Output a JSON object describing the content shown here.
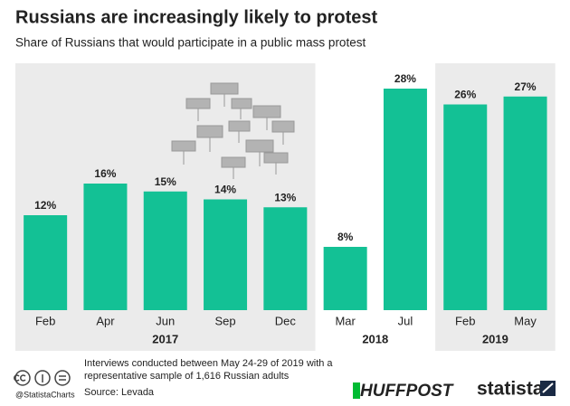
{
  "chart_data": {
    "type": "bar",
    "title": "Russians are increasingly likely to protest",
    "subtitle": "Share of Russians that would participate in a public mass protest",
    "color": "#13c195",
    "groups": [
      {
        "label": "2017",
        "background": "#ebebeb",
        "categories": [
          "Feb",
          "Apr",
          "Jun",
          "Sep",
          "Dec"
        ],
        "values": [
          12,
          16,
          15,
          14,
          13
        ],
        "value_labels": [
          "12%",
          "16%",
          "15%",
          "14%",
          "13%"
        ]
      },
      {
        "label": "2018",
        "background": "#ffffff",
        "categories": [
          "Mar",
          "Jul"
        ],
        "values": [
          8,
          28
        ],
        "value_labels": [
          "8%",
          "28%"
        ]
      },
      {
        "label": "2019",
        "background": "#ebebeb",
        "categories": [
          "Feb",
          "May"
        ],
        "values": [
          26,
          27
        ],
        "value_labels": [
          "26%",
          "27%"
        ]
      }
    ]
  },
  "footer": {
    "note": [
      "Interviews conducted between May 24-29 of 2019 with a",
      "representative sample of 1,616 Russian adults"
    ],
    "source": "Source: Levada",
    "handle": "@StatistaCharts",
    "partner": "HUFFPOST",
    "brand": "statista"
  }
}
